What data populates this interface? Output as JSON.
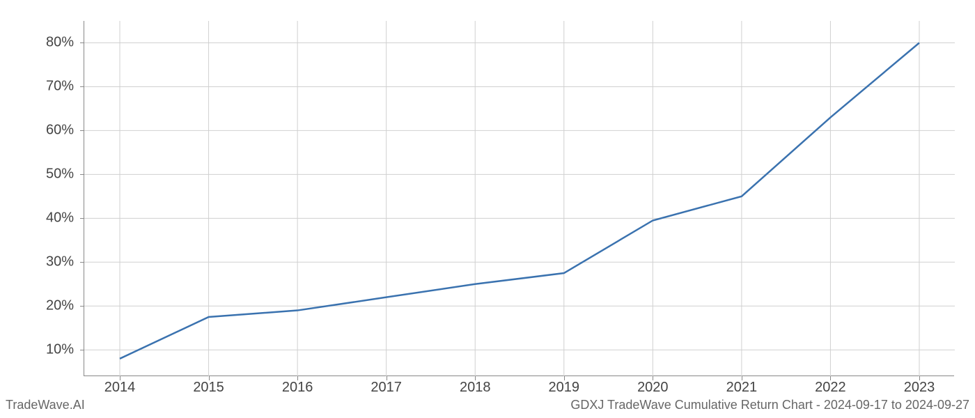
{
  "chart": {
    "type": "line",
    "x_values": [
      2014,
      2015,
      2016,
      2017,
      2018,
      2019,
      2020,
      2021,
      2022,
      2023
    ],
    "y_values": [
      8,
      17.5,
      19,
      22,
      25,
      27.5,
      39.5,
      45,
      63,
      80
    ],
    "x_tick_labels": [
      "2014",
      "2015",
      "2016",
      "2017",
      "2018",
      "2019",
      "2020",
      "2021",
      "2022",
      "2023"
    ],
    "y_tick_values": [
      10,
      20,
      30,
      40,
      50,
      60,
      70,
      80
    ],
    "y_tick_labels": [
      "10%",
      "20%",
      "30%",
      "40%",
      "50%",
      "60%",
      "70%",
      "80%"
    ],
    "xlim": [
      2013.6,
      2023.4
    ],
    "ylim": [
      4,
      85
    ],
    "line_color": "#3a72af",
    "line_width": 2.5,
    "grid_color": "#d0d0d0",
    "background_color": "#ffffff",
    "axis_label_fontsize": 20,
    "axis_label_color": "#444444"
  },
  "footer": {
    "left_text": "TradeWave.AI",
    "right_text": "GDXJ TradeWave Cumulative Return Chart - 2024-09-17 to 2024-09-27"
  }
}
